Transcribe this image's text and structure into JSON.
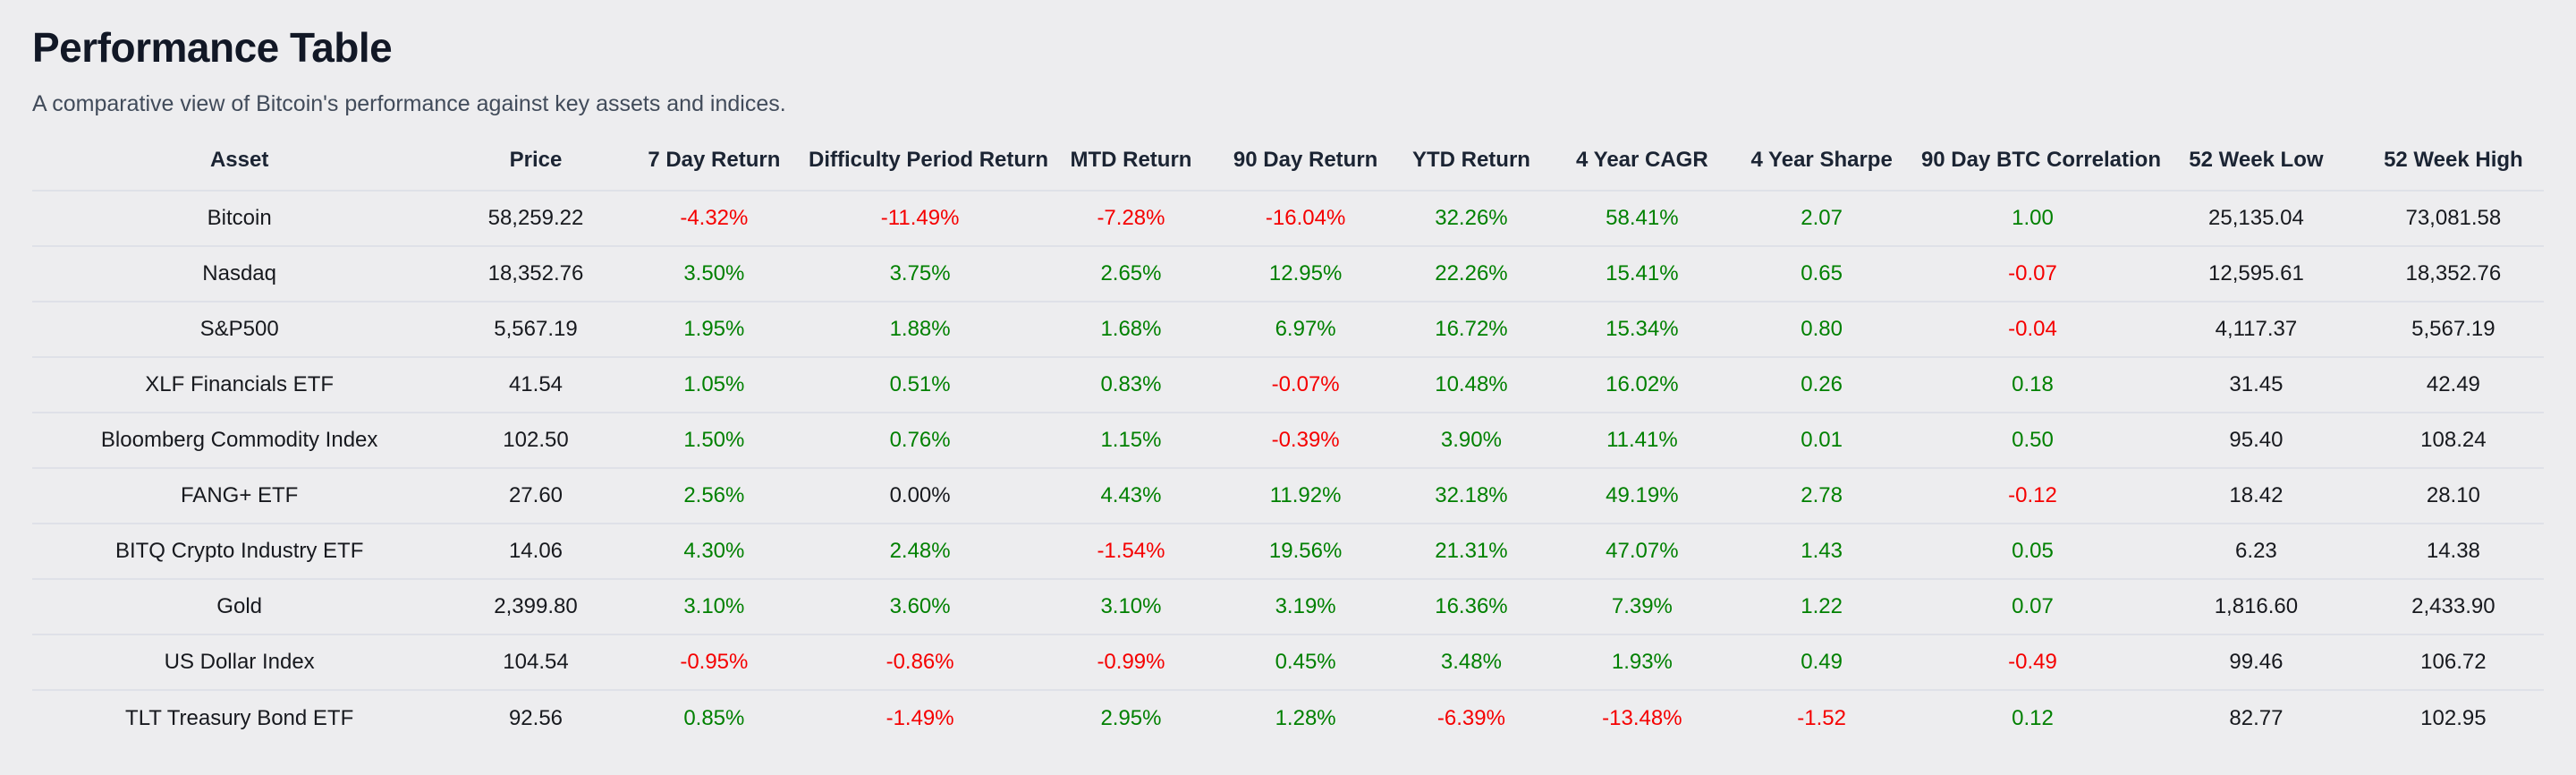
{
  "page": {
    "title": "Performance Table",
    "subtitle": "A comparative view of Bitcoin's performance against key assets and indices."
  },
  "colors": {
    "background": "#ededef",
    "title_text": "#121826",
    "subtitle_text": "#414b5a",
    "header_text": "#1b2433",
    "cell_text": "#17191e",
    "positive": "#008000",
    "negative": "#f50000",
    "divider": "#dfe1e8"
  },
  "table": {
    "columns": [
      "Asset",
      "Price",
      "7 Day Return",
      "Difficulty Period Return",
      "MTD Return",
      "90 Day Return",
      "YTD Return",
      "4 Year CAGR",
      "4 Year Sharpe",
      "90 Day BTC Correlation",
      "52 Week Low",
      "52 Week High"
    ],
    "rows": [
      {
        "asset": "Bitcoin",
        "cells": [
          {
            "v": "58,259.22",
            "s": "neu"
          },
          {
            "v": "-4.32%",
            "s": "neg"
          },
          {
            "v": "-11.49%",
            "s": "neg"
          },
          {
            "v": "-7.28%",
            "s": "neg"
          },
          {
            "v": "-16.04%",
            "s": "neg"
          },
          {
            "v": "32.26%",
            "s": "pos"
          },
          {
            "v": "58.41%",
            "s": "pos"
          },
          {
            "v": "2.07",
            "s": "pos"
          },
          {
            "v": "1.00",
            "s": "pos"
          },
          {
            "v": "25,135.04",
            "s": "neu"
          },
          {
            "v": "73,081.58",
            "s": "neu"
          }
        ]
      },
      {
        "asset": "Nasdaq",
        "cells": [
          {
            "v": "18,352.76",
            "s": "neu"
          },
          {
            "v": "3.50%",
            "s": "pos"
          },
          {
            "v": "3.75%",
            "s": "pos"
          },
          {
            "v": "2.65%",
            "s": "pos"
          },
          {
            "v": "12.95%",
            "s": "pos"
          },
          {
            "v": "22.26%",
            "s": "pos"
          },
          {
            "v": "15.41%",
            "s": "pos"
          },
          {
            "v": "0.65",
            "s": "pos"
          },
          {
            "v": "-0.07",
            "s": "neg"
          },
          {
            "v": "12,595.61",
            "s": "neu"
          },
          {
            "v": "18,352.76",
            "s": "neu"
          }
        ]
      },
      {
        "asset": "S&P500",
        "cells": [
          {
            "v": "5,567.19",
            "s": "neu"
          },
          {
            "v": "1.95%",
            "s": "pos"
          },
          {
            "v": "1.88%",
            "s": "pos"
          },
          {
            "v": "1.68%",
            "s": "pos"
          },
          {
            "v": "6.97%",
            "s": "pos"
          },
          {
            "v": "16.72%",
            "s": "pos"
          },
          {
            "v": "15.34%",
            "s": "pos"
          },
          {
            "v": "0.80",
            "s": "pos"
          },
          {
            "v": "-0.04",
            "s": "neg"
          },
          {
            "v": "4,117.37",
            "s": "neu"
          },
          {
            "v": "5,567.19",
            "s": "neu"
          }
        ]
      },
      {
        "asset": "XLF Financials ETF",
        "cells": [
          {
            "v": "41.54",
            "s": "neu"
          },
          {
            "v": "1.05%",
            "s": "pos"
          },
          {
            "v": "0.51%",
            "s": "pos"
          },
          {
            "v": "0.83%",
            "s": "pos"
          },
          {
            "v": "-0.07%",
            "s": "neg"
          },
          {
            "v": "10.48%",
            "s": "pos"
          },
          {
            "v": "16.02%",
            "s": "pos"
          },
          {
            "v": "0.26",
            "s": "pos"
          },
          {
            "v": "0.18",
            "s": "pos"
          },
          {
            "v": "31.45",
            "s": "neu"
          },
          {
            "v": "42.49",
            "s": "neu"
          }
        ]
      },
      {
        "asset": "Bloomberg Commodity Index",
        "cells": [
          {
            "v": "102.50",
            "s": "neu"
          },
          {
            "v": "1.50%",
            "s": "pos"
          },
          {
            "v": "0.76%",
            "s": "pos"
          },
          {
            "v": "1.15%",
            "s": "pos"
          },
          {
            "v": "-0.39%",
            "s": "neg"
          },
          {
            "v": "3.90%",
            "s": "pos"
          },
          {
            "v": "11.41%",
            "s": "pos"
          },
          {
            "v": "0.01",
            "s": "pos"
          },
          {
            "v": "0.50",
            "s": "pos"
          },
          {
            "v": "95.40",
            "s": "neu"
          },
          {
            "v": "108.24",
            "s": "neu"
          }
        ]
      },
      {
        "asset": "FANG+ ETF",
        "cells": [
          {
            "v": "27.60",
            "s": "neu"
          },
          {
            "v": "2.56%",
            "s": "pos"
          },
          {
            "v": "0.00%",
            "s": "neu"
          },
          {
            "v": "4.43%",
            "s": "pos"
          },
          {
            "v": "11.92%",
            "s": "pos"
          },
          {
            "v": "32.18%",
            "s": "pos"
          },
          {
            "v": "49.19%",
            "s": "pos"
          },
          {
            "v": "2.78",
            "s": "pos"
          },
          {
            "v": "-0.12",
            "s": "neg"
          },
          {
            "v": "18.42",
            "s": "neu"
          },
          {
            "v": "28.10",
            "s": "neu"
          }
        ]
      },
      {
        "asset": "BITQ Crypto Industry ETF",
        "cells": [
          {
            "v": "14.06",
            "s": "neu"
          },
          {
            "v": "4.30%",
            "s": "pos"
          },
          {
            "v": "2.48%",
            "s": "pos"
          },
          {
            "v": "-1.54%",
            "s": "neg"
          },
          {
            "v": "19.56%",
            "s": "pos"
          },
          {
            "v": "21.31%",
            "s": "pos"
          },
          {
            "v": "47.07%",
            "s": "pos"
          },
          {
            "v": "1.43",
            "s": "pos"
          },
          {
            "v": "0.05",
            "s": "pos"
          },
          {
            "v": "6.23",
            "s": "neu"
          },
          {
            "v": "14.38",
            "s": "neu"
          }
        ]
      },
      {
        "asset": "Gold",
        "cells": [
          {
            "v": "2,399.80",
            "s": "neu"
          },
          {
            "v": "3.10%",
            "s": "pos"
          },
          {
            "v": "3.60%",
            "s": "pos"
          },
          {
            "v": "3.10%",
            "s": "pos"
          },
          {
            "v": "3.19%",
            "s": "pos"
          },
          {
            "v": "16.36%",
            "s": "pos"
          },
          {
            "v": "7.39%",
            "s": "pos"
          },
          {
            "v": "1.22",
            "s": "pos"
          },
          {
            "v": "0.07",
            "s": "pos"
          },
          {
            "v": "1,816.60",
            "s": "neu"
          },
          {
            "v": "2,433.90",
            "s": "neu"
          }
        ]
      },
      {
        "asset": "US Dollar Index",
        "cells": [
          {
            "v": "104.54",
            "s": "neu"
          },
          {
            "v": "-0.95%",
            "s": "neg"
          },
          {
            "v": "-0.86%",
            "s": "neg"
          },
          {
            "v": "-0.99%",
            "s": "neg"
          },
          {
            "v": "0.45%",
            "s": "pos"
          },
          {
            "v": "3.48%",
            "s": "pos"
          },
          {
            "v": "1.93%",
            "s": "pos"
          },
          {
            "v": "0.49",
            "s": "pos"
          },
          {
            "v": "-0.49",
            "s": "neg"
          },
          {
            "v": "99.46",
            "s": "neu"
          },
          {
            "v": "106.72",
            "s": "neu"
          }
        ]
      },
      {
        "asset": "TLT Treasury Bond ETF",
        "cells": [
          {
            "v": "92.56",
            "s": "neu"
          },
          {
            "v": "0.85%",
            "s": "pos"
          },
          {
            "v": "-1.49%",
            "s": "neg"
          },
          {
            "v": "2.95%",
            "s": "pos"
          },
          {
            "v": "1.28%",
            "s": "pos"
          },
          {
            "v": "-6.39%",
            "s": "neg"
          },
          {
            "v": "-13.48%",
            "s": "neg"
          },
          {
            "v": "-1.52",
            "s": "neg"
          },
          {
            "v": "0.12",
            "s": "pos"
          },
          {
            "v": "82.77",
            "s": "neu"
          },
          {
            "v": "102.95",
            "s": "neu"
          }
        ]
      }
    ]
  }
}
